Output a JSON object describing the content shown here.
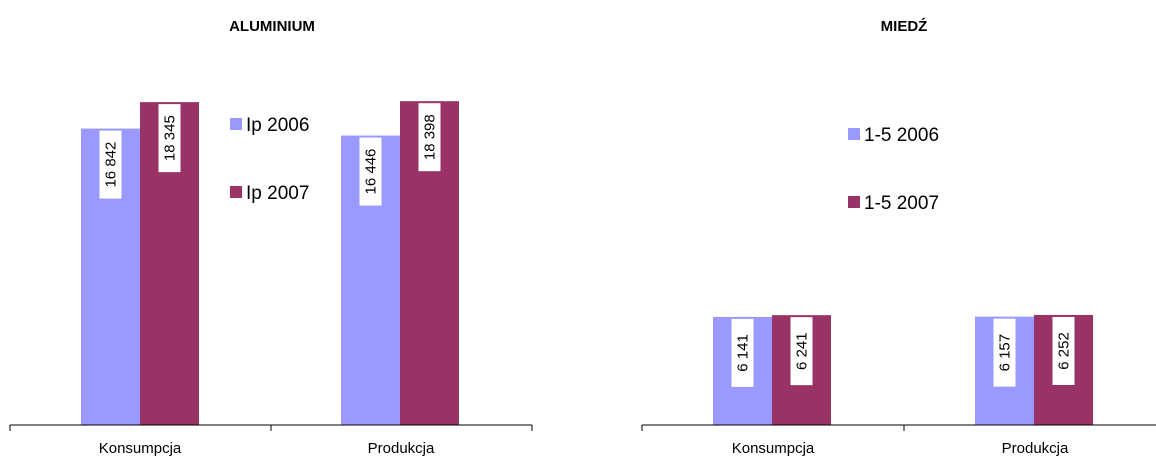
{
  "chart_data": [
    {
      "type": "bar",
      "title": "ALUMINIUM",
      "categories": [
        "Konsumpcja",
        "Produkcja"
      ],
      "series": [
        {
          "name": "Ip 2006",
          "values": [
            16842,
            16446
          ],
          "value_labels": [
            "16 842",
            "16 446"
          ],
          "color": "#9999ff"
        },
        {
          "name": "Ip 2007",
          "values": [
            18345,
            18398
          ],
          "value_labels": [
            "18 345",
            "18 398"
          ],
          "color": "#993366"
        }
      ],
      "ylim": [
        0,
        20000
      ],
      "grid": false,
      "legend": "right"
    },
    {
      "type": "bar",
      "title": "MIEDŹ",
      "categories": [
        "Konsumpcja",
        "Produkcja"
      ],
      "series": [
        {
          "name": "1-5 2006",
          "values": [
            6141,
            6157
          ],
          "value_labels": [
            "6 141",
            "6 157"
          ],
          "color": "#9999ff"
        },
        {
          "name": "1-5 2007",
          "values": [
            6241,
            6252
          ],
          "value_labels": [
            "6 241",
            "6 252"
          ],
          "color": "#993366"
        }
      ],
      "ylim": [
        0,
        20000
      ],
      "grid": false,
      "legend": "top-right"
    }
  ]
}
